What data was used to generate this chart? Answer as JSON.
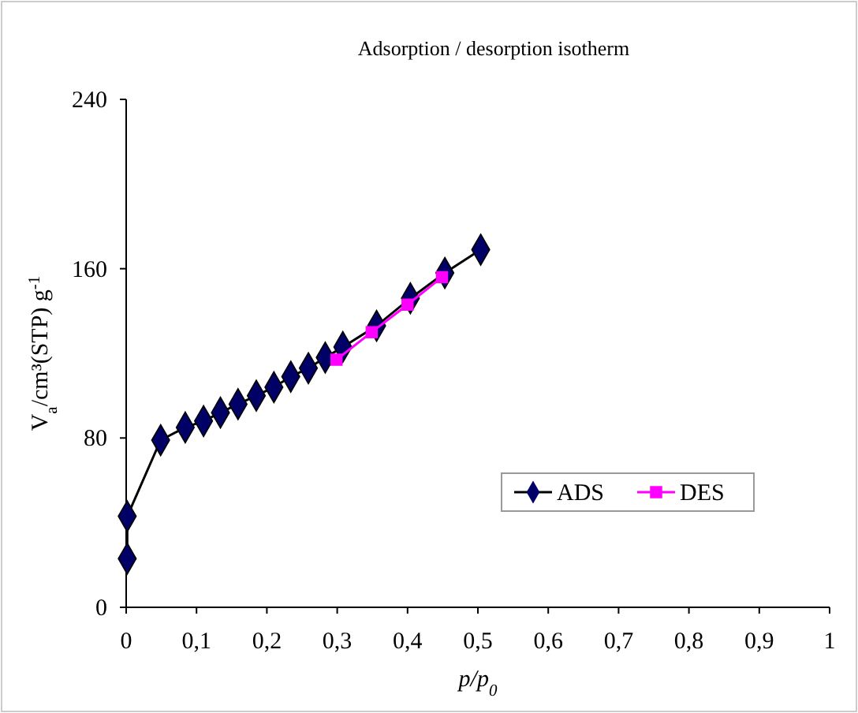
{
  "chart_data": {
    "type": "line",
    "title": "Adsorption / desorption isotherm",
    "xlabel": "p/p$_{0}$",
    "ylabel": "V$_{a}$/cm³(STP) g$^{-1}$",
    "xlim": [
      0,
      1
    ],
    "xticks": [
      {
        "value": 0,
        "label": "0"
      },
      {
        "value": 0.1,
        "label": "0,1"
      },
      {
        "value": 0.2,
        "label": "0,2"
      },
      {
        "value": 0.3,
        "label": "0,3"
      },
      {
        "value": 0.4,
        "label": "0,4"
      },
      {
        "value": 0.5,
        "label": "0,5"
      },
      {
        "value": 0.6,
        "label": "0,6"
      },
      {
        "value": 0.7,
        "label": "0,7"
      },
      {
        "value": 0.8,
        "label": "0,8"
      },
      {
        "value": 0.9,
        "label": "0,9"
      },
      {
        "value": 1,
        "label": "1"
      }
    ],
    "ylim": [
      0,
      240
    ],
    "yticks": [
      0,
      80,
      160,
      240
    ],
    "grid": false,
    "legend": "right",
    "series": [
      {
        "name": "ADS",
        "color": "#000066",
        "marker": "diamond",
        "x": [
          0.0015,
          0.0015,
          0.049,
          0.084,
          0.11,
          0.134,
          0.159,
          0.185,
          0.21,
          0.234,
          0.259,
          0.283,
          0.308,
          0.356,
          0.404,
          0.453,
          0.504
        ],
        "values": [
          23,
          43,
          79,
          85,
          88,
          92,
          96,
          100,
          104,
          109,
          113,
          118,
          123,
          133,
          146,
          158,
          169
        ]
      },
      {
        "name": "DES",
        "color": "#ff00ff",
        "marker": "square",
        "x": [
          0.299,
          0.349,
          0.4,
          0.449
        ],
        "values": [
          117,
          130,
          143,
          156
        ]
      }
    ]
  }
}
